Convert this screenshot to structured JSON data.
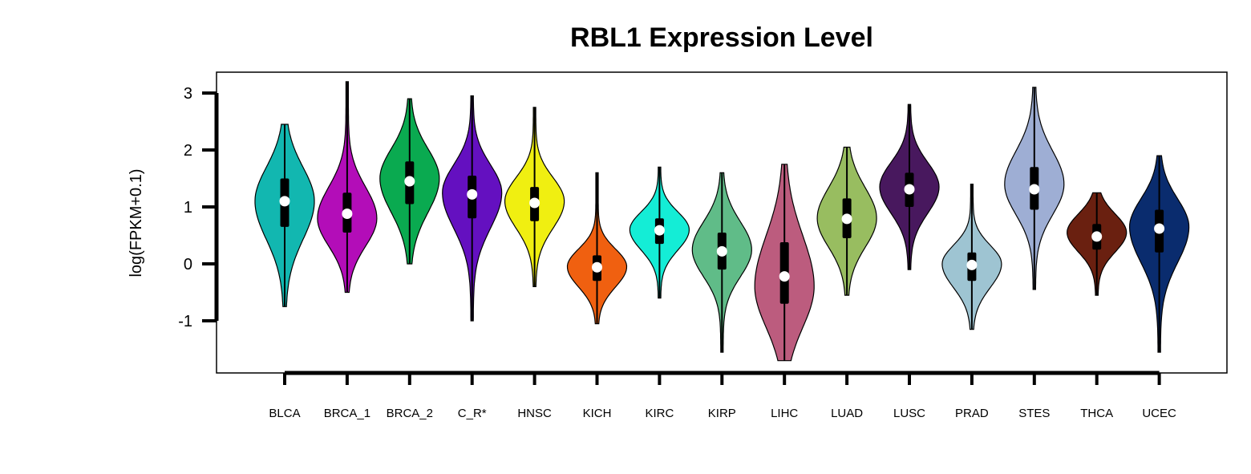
{
  "chart_data": {
    "type": "violin",
    "title": "RBL1 Expression Level",
    "ylabel": "log(FPKM+0.1)",
    "xlabel": "",
    "ylim": [
      -1.9,
      3.4
    ],
    "yticks": [
      -1,
      0,
      1,
      2,
      3
    ],
    "ytick_labels": [
      "-1",
      "0",
      "1",
      "2",
      "3"
    ],
    "categories": [
      "BLCA",
      "BRCA_1",
      "BRCA_2",
      "C_R*",
      "HNSC",
      "KICH",
      "KIRC",
      "KIRP",
      "LIHC",
      "LUAD",
      "LUSC",
      "PRAD",
      "STES",
      "THCA",
      "UCEC"
    ],
    "series": [
      {
        "category": "BLCA",
        "color": "#12B7B0",
        "min": -0.75,
        "q1": 0.65,
        "median": 1.1,
        "q3": 1.5,
        "max": 2.45,
        "mode": 1.1
      },
      {
        "category": "BRCA_1",
        "color": "#B30DB8",
        "min": -0.5,
        "q1": 0.55,
        "median": 0.88,
        "q3": 1.25,
        "max": 3.2,
        "mode": 0.8
      },
      {
        "category": "BRCA_2",
        "color": "#0AAA50",
        "min": 0.0,
        "q1": 1.05,
        "median": 1.45,
        "q3": 1.8,
        "max": 2.9,
        "mode": 1.5
      },
      {
        "category": "C_R*",
        "color": "#6410C0",
        "min": -1.0,
        "q1": 0.8,
        "median": 1.22,
        "q3": 1.55,
        "max": 2.95,
        "mode": 1.25
      },
      {
        "category": "HNSC",
        "color": "#F0EF11",
        "min": -0.4,
        "q1": 0.75,
        "median": 1.07,
        "q3": 1.35,
        "max": 2.75,
        "mode": 1.1
      },
      {
        "category": "KICH",
        "color": "#F06010",
        "min": -1.05,
        "q1": -0.3,
        "median": -0.06,
        "q3": 0.15,
        "max": 1.6,
        "mode": -0.05
      },
      {
        "category": "KIRC",
        "color": "#14EDD6",
        "min": -0.6,
        "q1": 0.35,
        "median": 0.59,
        "q3": 0.8,
        "max": 1.7,
        "mode": 0.6
      },
      {
        "category": "KIRP",
        "color": "#60BC88",
        "min": -1.55,
        "q1": -0.1,
        "median": 0.22,
        "q3": 0.55,
        "max": 1.6,
        "mode": 0.25
      },
      {
        "category": "LIHC",
        "color": "#BC5C7E",
        "min": -1.7,
        "q1": -0.7,
        "median": -0.22,
        "q3": 0.38,
        "max": 1.75,
        "mode": -0.4
      },
      {
        "category": "LUAD",
        "color": "#98BD60",
        "min": -0.55,
        "q1": 0.45,
        "median": 0.79,
        "q3": 1.15,
        "max": 2.05,
        "mode": 0.8
      },
      {
        "category": "LUSC",
        "color": "#48185E",
        "min": -0.1,
        "q1": 1.0,
        "median": 1.31,
        "q3": 1.6,
        "max": 2.8,
        "mode": 1.35
      },
      {
        "category": "PRAD",
        "color": "#9EC4D2",
        "min": -1.15,
        "q1": -0.3,
        "median": -0.02,
        "q3": 0.2,
        "max": 1.4,
        "mode": 0.0
      },
      {
        "category": "STES",
        "color": "#9EAED4",
        "min": -0.45,
        "q1": 0.95,
        "median": 1.31,
        "q3": 1.7,
        "max": 3.1,
        "mode": 1.4
      },
      {
        "category": "THCA",
        "color": "#6A2010",
        "min": -0.55,
        "q1": 0.25,
        "median": 0.48,
        "q3": 0.7,
        "max": 1.25,
        "mode": 0.55
      },
      {
        "category": "UCEC",
        "color": "#0A2C6E",
        "min": -1.55,
        "q1": 0.2,
        "median": 0.62,
        "q3": 0.95,
        "max": 1.9,
        "mode": 0.65
      }
    ],
    "grid": false,
    "legend": "none"
  }
}
